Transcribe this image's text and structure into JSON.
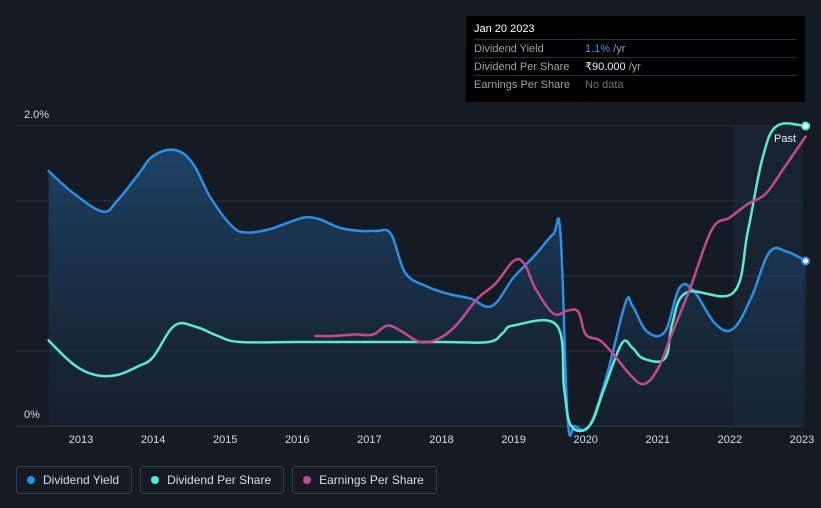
{
  "tooltip": {
    "date": "Jan 20 2023",
    "rows": [
      {
        "label": "Dividend Yield",
        "value": "1.1%",
        "unit": " /yr"
      },
      {
        "label": "Dividend Per Share",
        "value": "₹90.000",
        "unit": " /yr"
      },
      {
        "label": "Earnings Per Share",
        "value": "No data",
        "unit": ""
      }
    ]
  },
  "legend": [
    {
      "label": "Dividend Yield",
      "color": "#2d8fe3"
    },
    {
      "label": "Dividend Per Share",
      "color": "#5ce8d3"
    },
    {
      "label": "Earnings Per Share",
      "color": "#c24a8e"
    }
  ],
  "chart_data": {
    "type": "line",
    "y_labels": {
      "top": "2.0%",
      "bottom": "0%"
    },
    "ylim": [
      0,
      2.0
    ],
    "xlim": [
      2012.55,
      2023.05
    ],
    "x_ticks": [
      "2013",
      "2014",
      "2015",
      "2016",
      "2017",
      "2018",
      "2019",
      "2020",
      "2021",
      "2022",
      "2023"
    ],
    "x_tick_values": [
      2013,
      2014,
      2015,
      2016,
      2017,
      2018,
      2019,
      2020,
      2021,
      2022,
      2023
    ],
    "past_label": "Past",
    "past_region_start": 2022.05,
    "grid": true,
    "series": [
      {
        "name": "Dividend Yield",
        "color": "#2d8fe3",
        "area": true,
        "points": [
          [
            2012.55,
            1.7
          ],
          [
            2012.9,
            1.55
          ],
          [
            2013.3,
            1.43
          ],
          [
            2013.5,
            1.5
          ],
          [
            2013.8,
            1.68
          ],
          [
            2014.0,
            1.8
          ],
          [
            2014.3,
            1.84
          ],
          [
            2014.55,
            1.75
          ],
          [
            2014.8,
            1.52
          ],
          [
            2015.1,
            1.33
          ],
          [
            2015.3,
            1.29
          ],
          [
            2015.6,
            1.31
          ],
          [
            2015.9,
            1.36
          ],
          [
            2016.1,
            1.39
          ],
          [
            2016.3,
            1.38
          ],
          [
            2016.6,
            1.32
          ],
          [
            2016.9,
            1.3
          ],
          [
            2017.1,
            1.3
          ],
          [
            2017.3,
            1.28
          ],
          [
            2017.5,
            1.02
          ],
          [
            2017.8,
            0.93
          ],
          [
            2018.1,
            0.88
          ],
          [
            2018.4,
            0.85
          ],
          [
            2018.7,
            0.8
          ],
          [
            2019.0,
            0.99
          ],
          [
            2019.3,
            1.14
          ],
          [
            2019.55,
            1.28
          ],
          [
            2019.65,
            1.28
          ],
          [
            2019.75,
            0.05
          ],
          [
            2019.85,
            0.0
          ],
          [
            2020.05,
            0.0
          ],
          [
            2020.3,
            0.35
          ],
          [
            2020.55,
            0.82
          ],
          [
            2020.65,
            0.8
          ],
          [
            2020.85,
            0.63
          ],
          [
            2021.1,
            0.63
          ],
          [
            2021.3,
            0.92
          ],
          [
            2021.5,
            0.9
          ],
          [
            2021.8,
            0.68
          ],
          [
            2022.05,
            0.65
          ],
          [
            2022.3,
            0.86
          ],
          [
            2022.55,
            1.16
          ],
          [
            2022.8,
            1.16
          ],
          [
            2023.05,
            1.1
          ]
        ]
      },
      {
        "name": "Dividend Per Share",
        "color": "#5ce8d3",
        "area": false,
        "points": [
          [
            2012.55,
            0.57
          ],
          [
            2012.9,
            0.41
          ],
          [
            2013.2,
            0.34
          ],
          [
            2013.5,
            0.34
          ],
          [
            2013.8,
            0.4
          ],
          [
            2014.0,
            0.46
          ],
          [
            2014.3,
            0.67
          ],
          [
            2014.6,
            0.66
          ],
          [
            2014.9,
            0.6
          ],
          [
            2015.2,
            0.56
          ],
          [
            2016.0,
            0.56
          ],
          [
            2017.0,
            0.56
          ],
          [
            2018.0,
            0.56
          ],
          [
            2018.65,
            0.56
          ],
          [
            2018.85,
            0.62
          ],
          [
            2019.0,
            0.67
          ],
          [
            2019.6,
            0.67
          ],
          [
            2019.7,
            0.25
          ],
          [
            2019.8,
            0.0
          ],
          [
            2020.05,
            0.0
          ],
          [
            2020.25,
            0.24
          ],
          [
            2020.5,
            0.55
          ],
          [
            2020.65,
            0.52
          ],
          [
            2020.8,
            0.45
          ],
          [
            2021.1,
            0.45
          ],
          [
            2021.2,
            0.68
          ],
          [
            2021.4,
            0.89
          ],
          [
            2022.05,
            0.89
          ],
          [
            2022.25,
            1.3
          ],
          [
            2022.45,
            1.78
          ],
          [
            2022.65,
            2.0
          ],
          [
            2023.05,
            2.0
          ]
        ]
      },
      {
        "name": "Earnings Per Share",
        "color": "#c24a8e",
        "area": false,
        "points": [
          [
            2016.25,
            0.6
          ],
          [
            2016.5,
            0.6
          ],
          [
            2016.8,
            0.61
          ],
          [
            2017.05,
            0.61
          ],
          [
            2017.25,
            0.67
          ],
          [
            2017.45,
            0.63
          ],
          [
            2017.7,
            0.56
          ],
          [
            2017.95,
            0.58
          ],
          [
            2018.2,
            0.67
          ],
          [
            2018.5,
            0.85
          ],
          [
            2018.75,
            0.95
          ],
          [
            2019.0,
            1.1
          ],
          [
            2019.15,
            1.08
          ],
          [
            2019.3,
            0.92
          ],
          [
            2019.55,
            0.75
          ],
          [
            2019.75,
            0.77
          ],
          [
            2019.9,
            0.76
          ],
          [
            2020.0,
            0.61
          ],
          [
            2020.2,
            0.57
          ],
          [
            2020.4,
            0.47
          ],
          [
            2020.6,
            0.35
          ],
          [
            2020.8,
            0.28
          ],
          [
            2021.0,
            0.38
          ],
          [
            2021.2,
            0.62
          ],
          [
            2021.45,
            0.92
          ],
          [
            2021.75,
            1.31
          ],
          [
            2022.0,
            1.39
          ],
          [
            2022.25,
            1.48
          ],
          [
            2022.5,
            1.55
          ],
          [
            2022.75,
            1.72
          ],
          [
            2023.05,
            1.93
          ]
        ]
      }
    ],
    "end_markers": [
      {
        "series": "Dividend Yield",
        "x": 2023.05,
        "y": 1.1
      },
      {
        "series": "Dividend Per Share",
        "x": 2023.05,
        "y": 2.0
      }
    ]
  }
}
